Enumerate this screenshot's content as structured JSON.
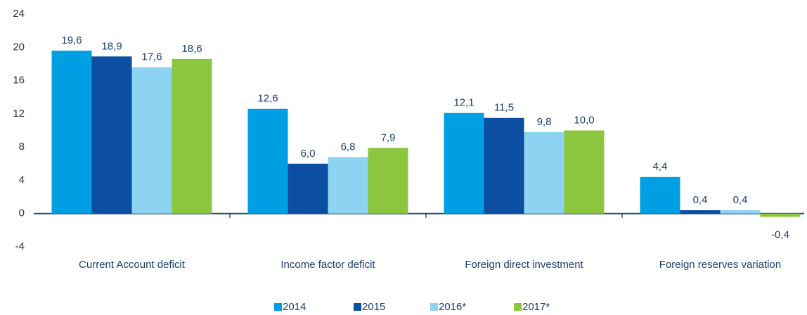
{
  "chart_data": {
    "type": "bar",
    "categories": [
      "Current Account deficit",
      "Income factor deficit",
      "Foreign direct investment",
      "Foreign reserves variation"
    ],
    "series": [
      {
        "name": "2014",
        "color": "#009fe3",
        "values": [
          19.6,
          12.6,
          12.1,
          4.4
        ],
        "value_labels": [
          "19,6",
          "12,6",
          "12,1",
          "4,4"
        ]
      },
      {
        "name": "2015",
        "color": "#0b4ea2",
        "values": [
          18.9,
          6.0,
          11.5,
          0.4
        ],
        "value_labels": [
          "18,9",
          "6,0",
          "11,5",
          "0,4"
        ]
      },
      {
        "name": "2016*",
        "color": "#8dd3f2",
        "values": [
          17.6,
          6.8,
          9.8,
          0.4
        ],
        "value_labels": [
          "17,6",
          "6,8",
          "9,8",
          "0,4"
        ]
      },
      {
        "name": "2017*",
        "color": "#8cc63f",
        "values": [
          18.6,
          7.9,
          10.0,
          -0.4
        ],
        "value_labels": [
          "18,6",
          "7,9",
          "10,0",
          "-0,4"
        ]
      }
    ],
    "ylim": [
      -4,
      24
    ],
    "yticks": [
      -4,
      0,
      4,
      8,
      12,
      16,
      20,
      24
    ],
    "grid": false,
    "legend": "bottom"
  }
}
